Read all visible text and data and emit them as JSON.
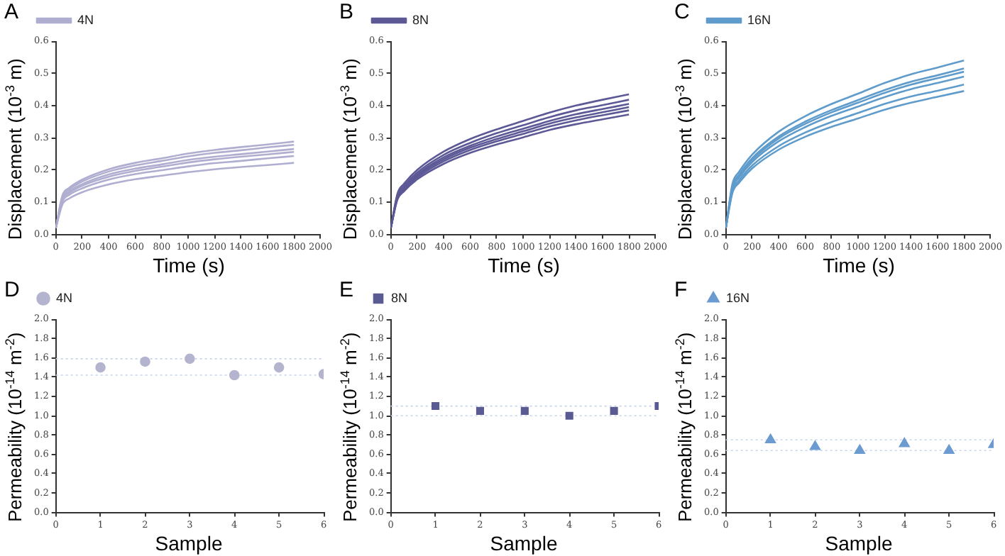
{
  "chart_data": [
    {
      "type": "line",
      "title": "A",
      "xlabel": "Time (s)",
      "ylabel": "Displacement (10$^{-3}$ m)",
      "x": [
        0,
        50,
        100,
        200,
        400,
        600,
        800,
        1000,
        1200,
        1400,
        1600,
        1800
      ],
      "xlim": [
        0,
        2000
      ],
      "xticks": [
        0,
        200,
        400,
        600,
        800,
        1000,
        1200,
        1400,
        1600,
        1800,
        2000
      ],
      "ylim": [
        0,
        0.6
      ],
      "yticks": [
        {
          "value": 0,
          "label": "0.0"
        },
        0.1,
        0.2,
        0.3,
        0.4,
        0.5,
        0.6
      ],
      "grid": false,
      "legend": "top left",
      "marker": "none",
      "series": [
        {
          "name": "4N",
          "color": "#b0aed0",
          "values": [
            0.02,
            0.121,
            0.144,
            0.17,
            0.202,
            0.222,
            0.236,
            0.251,
            0.262,
            0.271,
            0.279,
            0.288
          ]
        },
        {
          "color": "#b0aed0",
          "values": [
            0.02,
            0.117,
            0.139,
            0.164,
            0.195,
            0.214,
            0.228,
            0.242,
            0.253,
            0.261,
            0.27,
            0.278
          ]
        },
        {
          "color": "#b0aed0",
          "values": [
            0.02,
            0.111,
            0.133,
            0.156,
            0.186,
            0.204,
            0.217,
            0.231,
            0.241,
            0.249,
            0.257,
            0.265
          ]
        },
        {
          "color": "#b0aed0",
          "values": [
            0.02,
            0.108,
            0.128,
            0.151,
            0.179,
            0.197,
            0.21,
            0.223,
            0.233,
            0.241,
            0.248,
            0.256
          ]
        },
        {
          "color": "#b0aed0",
          "values": [
            0.02,
            0.102,
            0.122,
            0.143,
            0.17,
            0.187,
            0.199,
            0.211,
            0.221,
            0.228,
            0.236,
            0.243
          ]
        },
        {
          "color": "#b0aed0",
          "values": [
            0.02,
            0.093,
            0.111,
            0.131,
            0.155,
            0.171,
            0.182,
            0.193,
            0.202,
            0.209,
            0.215,
            0.222
          ]
        }
      ]
    },
    {
      "type": "line",
      "title": "B",
      "xlabel": "Time (s)",
      "ylabel": "Displacement (10$^{-3}$ m)",
      "x": [
        0,
        50,
        100,
        200,
        400,
        600,
        800,
        1000,
        1200,
        1400,
        1600,
        1800
      ],
      "xlim": [
        0,
        2000
      ],
      "xticks": [
        0,
        200,
        400,
        600,
        800,
        1000,
        1200,
        1400,
        1600,
        1800,
        2000
      ],
      "ylim": [
        0,
        0.6
      ],
      "yticks": [
        {
          "value": 0,
          "label": "0.0"
        },
        0.1,
        0.2,
        0.3,
        0.4,
        0.5,
        0.6
      ],
      "grid": false,
      "legend": "top left",
      "marker": "none",
      "series": [
        {
          "name": "8N",
          "color": "#5c5996",
          "values": [
            0.02,
            0.126,
            0.157,
            0.2,
            0.257,
            0.296,
            0.326,
            0.352,
            0.378,
            0.4,
            0.418,
            0.435
          ]
        },
        {
          "color": "#5c5996",
          "values": [
            0.02,
            0.121,
            0.15,
            0.192,
            0.247,
            0.284,
            0.314,
            0.339,
            0.364,
            0.385,
            0.401,
            0.418
          ]
        },
        {
          "color": "#5c5996",
          "values": [
            0.02,
            0.117,
            0.146,
            0.186,
            0.239,
            0.275,
            0.304,
            0.328,
            0.352,
            0.373,
            0.389,
            0.405
          ]
        },
        {
          "color": "#5c5996",
          "values": [
            0.02,
            0.115,
            0.142,
            0.182,
            0.233,
            0.269,
            0.296,
            0.32,
            0.344,
            0.363,
            0.379,
            0.395
          ]
        },
        {
          "color": "#5c5996",
          "values": [
            0.02,
            0.112,
            0.139,
            0.177,
            0.227,
            0.262,
            0.289,
            0.312,
            0.335,
            0.354,
            0.37,
            0.385
          ]
        },
        {
          "color": "#5c5996",
          "values": [
            0.02,
            0.108,
            0.134,
            0.171,
            0.219,
            0.253,
            0.279,
            0.301,
            0.324,
            0.342,
            0.357,
            0.372
          ]
        }
      ]
    },
    {
      "type": "line",
      "title": "C",
      "xlabel": "Time (s)",
      "ylabel": "Displacement (10$^{-3}$ m)",
      "x": [
        0,
        50,
        100,
        200,
        400,
        600,
        800,
        1000,
        1200,
        1400,
        1600,
        1800
      ],
      "xlim": [
        0,
        2000
      ],
      "xticks": [
        0,
        200,
        400,
        600,
        800,
        1000,
        1200,
        1400,
        1600,
        1800,
        2000
      ],
      "ylim": [
        0,
        0.6
      ],
      "yticks": [
        {
          "value": 0,
          "label": "0.0"
        },
        0.1,
        0.2,
        0.3,
        0.4,
        0.5,
        0.6
      ],
      "grid": false,
      "legend": "top left",
      "marker": "none",
      "series": [
        {
          "name": "16N",
          "color": "#5f9ccc",
          "values": [
            0.02,
            0.157,
            0.194,
            0.248,
            0.319,
            0.367,
            0.405,
            0.437,
            0.47,
            0.497,
            0.518,
            0.54
          ]
        },
        {
          "color": "#5f9ccc",
          "values": [
            0.02,
            0.149,
            0.185,
            0.237,
            0.304,
            0.35,
            0.386,
            0.417,
            0.448,
            0.474,
            0.494,
            0.515
          ]
        },
        {
          "color": "#5f9ccc",
          "values": [
            0.02,
            0.146,
            0.182,
            0.232,
            0.298,
            0.343,
            0.379,
            0.409,
            0.439,
            0.465,
            0.485,
            0.505
          ]
        },
        {
          "color": "#5f9ccc",
          "values": [
            0.02,
            0.142,
            0.176,
            0.225,
            0.289,
            0.333,
            0.368,
            0.397,
            0.426,
            0.451,
            0.47,
            0.49
          ]
        },
        {
          "color": "#5f9ccc",
          "values": [
            0.02,
            0.135,
            0.167,
            0.214,
            0.274,
            0.316,
            0.349,
            0.377,
            0.405,
            0.428,
            0.446,
            0.465
          ]
        },
        {
          "color": "#5f9ccc",
          "values": [
            0.02,
            0.129,
            0.16,
            0.205,
            0.263,
            0.303,
            0.334,
            0.36,
            0.387,
            0.409,
            0.427,
            0.445
          ]
        }
      ]
    },
    {
      "type": "scatter",
      "title": "D",
      "xlabel": "Sample",
      "ylabel": "Permeability (10$^{-14}$ m$^{-2}$)",
      "x": [
        1,
        2,
        3,
        4,
        5,
        6
      ],
      "xlim": [
        0,
        6
      ],
      "xticks": [
        0,
        1,
        2,
        3,
        4,
        5,
        6
      ],
      "ylim": [
        0,
        2
      ],
      "yticks": [
        {
          "value": 0,
          "label": "0.0"
        },
        0.2,
        0.4,
        0.6,
        0.8,
        {
          "value": 1,
          "label": "1.0"
        },
        1.2,
        1.4,
        1.6,
        1.8,
        {
          "value": 2,
          "label": "2.0"
        }
      ],
      "grid": false,
      "legend": "top left",
      "marker": "circle",
      "series": [
        {
          "name": "4N",
          "color": "#b4b4cf",
          "values": [
            1.5,
            1.56,
            1.59,
            1.42,
            1.5,
            1.43
          ]
        }
      ],
      "ref_lines": [
        {
          "axis": "y",
          "value": 1.59,
          "color": "#c8d4ec",
          "line_style": "dotted"
        },
        {
          "axis": "y",
          "value": 1.42,
          "color": "#c8d4ec",
          "line_style": "dotted"
        }
      ]
    },
    {
      "type": "scatter",
      "title": "E",
      "xlabel": "Sample",
      "ylabel": "Permeability (10$^{-14}$ m$^{-2}$)",
      "x": [
        1,
        2,
        3,
        4,
        5,
        6
      ],
      "xlim": [
        0,
        6
      ],
      "xticks": [
        0,
        1,
        2,
        3,
        4,
        5,
        6
      ],
      "ylim": [
        0,
        2
      ],
      "yticks": [
        {
          "value": 0,
          "label": "0.0"
        },
        0.2,
        0.4,
        0.6,
        0.8,
        {
          "value": 1,
          "label": "1.0"
        },
        1.2,
        1.4,
        1.6,
        1.8,
        {
          "value": 2,
          "label": "2.0"
        }
      ],
      "grid": false,
      "legend": "top left",
      "marker": "square",
      "series": [
        {
          "name": "8N",
          "color": "#5b5b93",
          "values": [
            1.1,
            1.05,
            1.05,
            1.0,
            1.05,
            1.1
          ]
        }
      ],
      "ref_lines": [
        {
          "axis": "y",
          "value": 1.1,
          "color": "#c8d4ec",
          "line_style": "dotted"
        },
        {
          "axis": "y",
          "value": 1.0,
          "color": "#c8d4ec",
          "line_style": "dotted"
        }
      ]
    },
    {
      "type": "scatter",
      "title": "F",
      "xlabel": "Sample",
      "ylabel": "Permeability (10$^{-14}$ m$^{-2}$)",
      "x": [
        1,
        2,
        3,
        4,
        5,
        6
      ],
      "xlim": [
        0,
        6
      ],
      "xticks": [
        0,
        1,
        2,
        3,
        4,
        5,
        6
      ],
      "ylim": [
        0,
        2
      ],
      "yticks": [
        {
          "value": 0,
          "label": "0.0"
        },
        0.2,
        0.4,
        0.6,
        0.8,
        {
          "value": 1,
          "label": "1.0"
        },
        1.2,
        1.4,
        1.6,
        1.8,
        {
          "value": 2,
          "label": "2.0"
        }
      ],
      "grid": false,
      "legend": "top left",
      "marker": "triangle",
      "series": [
        {
          "name": "16N",
          "color": "#6b9bd1",
          "values": [
            0.75,
            0.68,
            0.64,
            0.71,
            0.64,
            0.7
          ]
        }
      ],
      "ref_lines": [
        {
          "axis": "y",
          "value": 0.75,
          "color": "#c8d4ec",
          "line_style": "dotted"
        },
        {
          "axis": "y",
          "value": 0.64,
          "color": "#c8d4ec",
          "line_style": "dotted"
        }
      ]
    }
  ]
}
